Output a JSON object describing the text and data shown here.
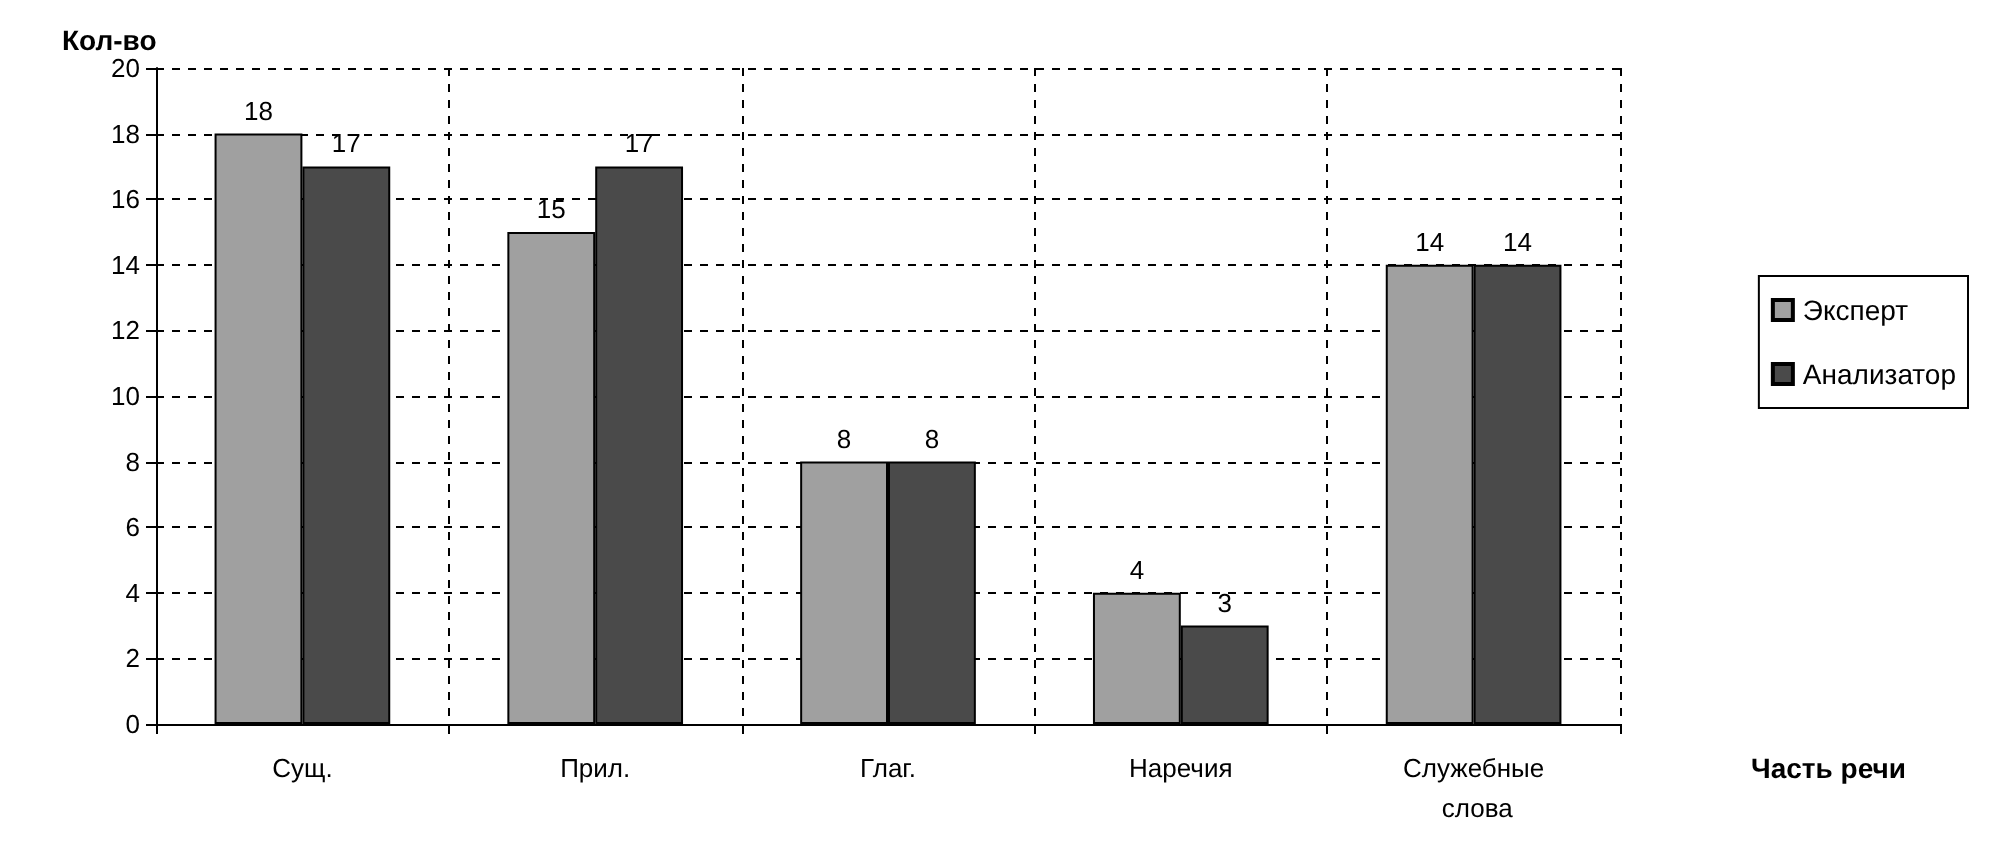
{
  "chart_data": {
    "type": "bar",
    "ylabel": "Кол-во",
    "xlabel": "Часть речи",
    "categories": [
      "Сущ.",
      "Прил.",
      "Глаг.",
      "Наречия",
      "Служебные слова"
    ],
    "series": [
      {
        "name": "Эксперт",
        "color": "#a0a0a0",
        "values": [
          18,
          15,
          8,
          4,
          14
        ]
      },
      {
        "name": "Анализатор",
        "color": "#4a4a4a",
        "values": [
          17,
          17,
          8,
          3,
          14
        ]
      }
    ],
    "ylim": [
      0,
      20
    ],
    "yticks": [
      0,
      2,
      4,
      6,
      8,
      10,
      12,
      14,
      16,
      18,
      20
    ],
    "grid": true,
    "legend": "right",
    "data_labels": true
  }
}
